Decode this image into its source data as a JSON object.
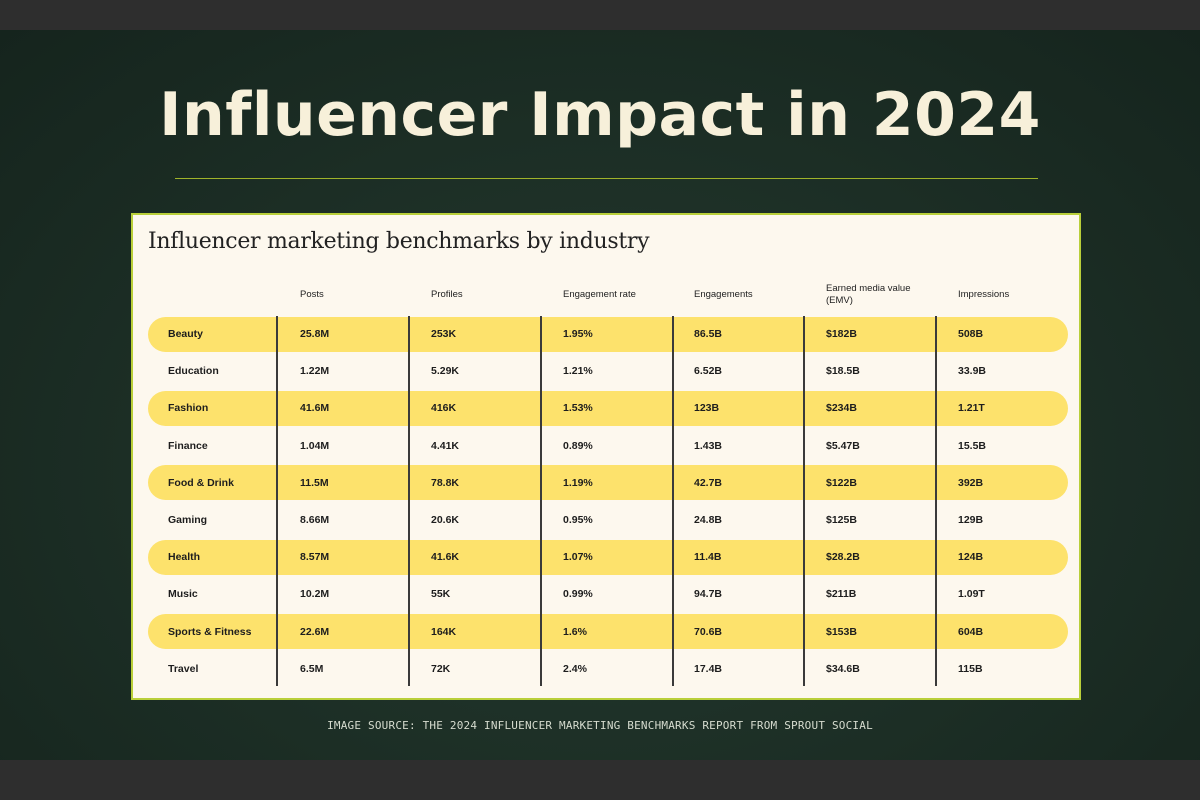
{
  "header": {
    "title": "Influencer Impact in 2024"
  },
  "card": {
    "subtitle": "Influencer marketing benchmarks by industry",
    "columns": [
      "Posts",
      "Profiles",
      "Engagement rate",
      "Engagements",
      "Earned media value (EMV)",
      "Impressions"
    ],
    "rows": [
      {
        "industry": "Beauty",
        "values": [
          "25.8M",
          "253K",
          "1.95%",
          "86.5B",
          "$182B",
          "508B"
        ],
        "highlighted": true
      },
      {
        "industry": "Education",
        "values": [
          "1.22M",
          "5.29K",
          "1.21%",
          "6.52B",
          "$18.5B",
          "33.9B"
        ],
        "highlighted": false
      },
      {
        "industry": "Fashion",
        "values": [
          "41.6M",
          "416K",
          "1.53%",
          "123B",
          "$234B",
          "1.21T"
        ],
        "highlighted": true
      },
      {
        "industry": "Finance",
        "values": [
          "1.04M",
          "4.41K",
          "0.89%",
          "1.43B",
          "$5.47B",
          "15.5B"
        ],
        "highlighted": false
      },
      {
        "industry": "Food & Drink",
        "values": [
          "11.5M",
          "78.8K",
          "1.19%",
          "42.7B",
          "$122B",
          "392B"
        ],
        "highlighted": true
      },
      {
        "industry": "Gaming",
        "values": [
          "8.66M",
          "20.6K",
          "0.95%",
          "24.8B",
          "$125B",
          "129B"
        ],
        "highlighted": false
      },
      {
        "industry": "Health",
        "values": [
          "8.57M",
          "41.6K",
          "1.07%",
          "11.4B",
          "$28.2B",
          "124B"
        ],
        "highlighted": true
      },
      {
        "industry": "Music",
        "values": [
          "10.2M",
          "55K",
          "0.99%",
          "94.7B",
          "$211B",
          "1.09T"
        ],
        "highlighted": false
      },
      {
        "industry": "Sports & Fitness",
        "values": [
          "22.6M",
          "164K",
          "1.6%",
          "70.6B",
          "$153B",
          "604B"
        ],
        "highlighted": true
      },
      {
        "industry": "Travel",
        "values": [
          "6.5M",
          "72K",
          "2.4%",
          "17.4B",
          "$34.6B",
          "115B"
        ],
        "highlighted": false
      }
    ]
  },
  "footer": {
    "caption": "IMAGE SOURCE: THE 2024 INFLUENCER MARKETING BENCHMARKS REPORT FROM SPROUT SOCIAL"
  },
  "colors": {
    "background": "#1c2e25",
    "title": "#f7f0da",
    "card": "#fdf8ee",
    "highlight": "#fde26c",
    "accent_line": "#9fb32a"
  }
}
